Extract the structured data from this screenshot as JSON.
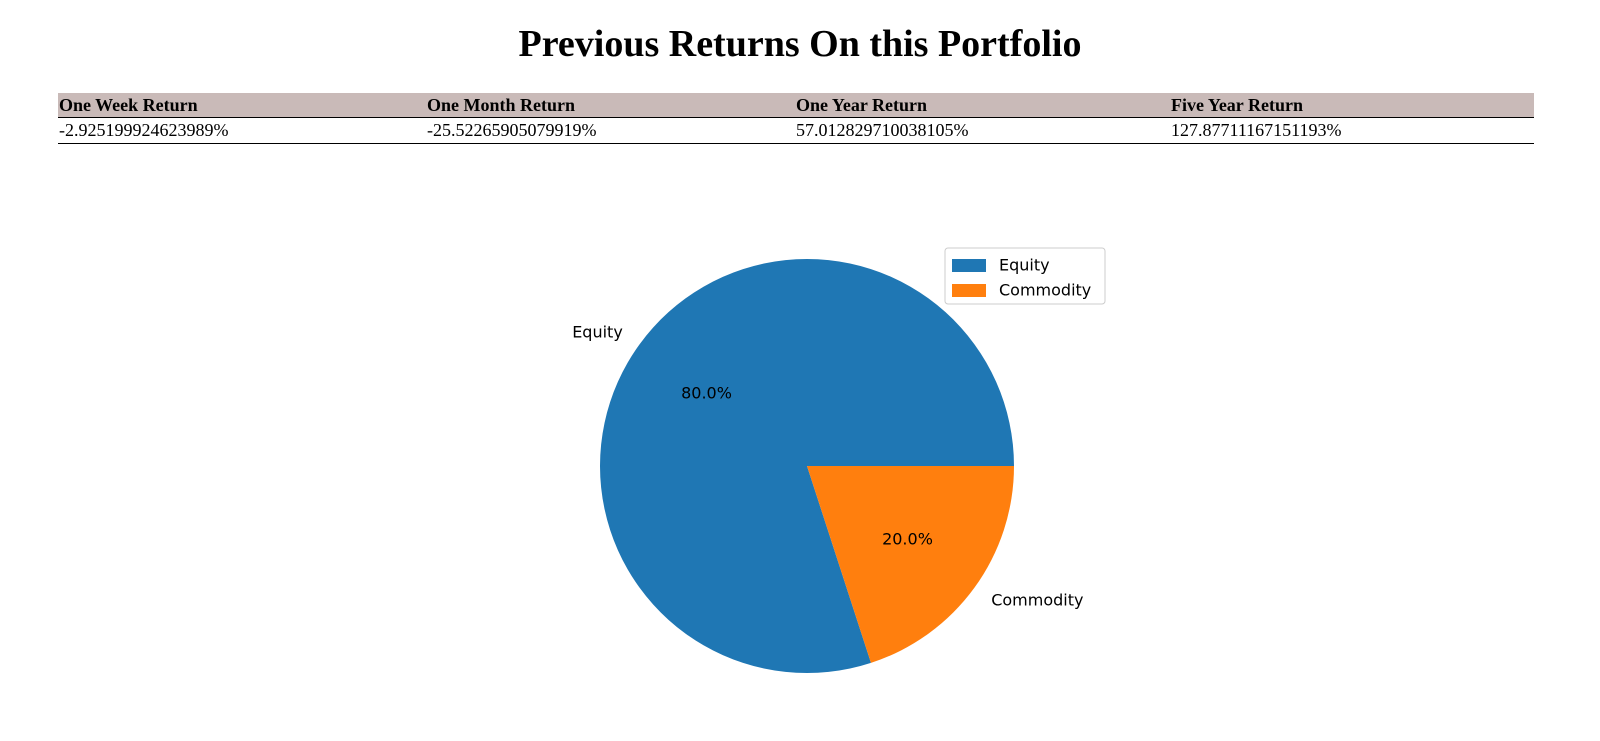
{
  "page": {
    "title": "Previous Returns On this Portfolio"
  },
  "returns_table": {
    "header_bg": "#c9bab8",
    "headers": [
      "One Week Return",
      "One Month Return",
      "One Year Return",
      "Five Year Return"
    ],
    "values": [
      "-2.925199924623989%",
      "-25.52265905079919%",
      "57.012829710038105%",
      "127.87711167151193%"
    ]
  },
  "chart_data": {
    "type": "pie",
    "categories": [
      "Equity",
      "Commodity"
    ],
    "values": [
      80.0,
      20.0
    ],
    "value_labels": [
      "80.0%",
      "20.0%"
    ],
    "colors": [
      "#1f77b4",
      "#ff7f0e"
    ],
    "start_angle_deg": 0,
    "direction": "counterclockwise",
    "legend": {
      "entries": [
        "Equity",
        "Commodity"
      ],
      "placement": "upper-right"
    }
  }
}
